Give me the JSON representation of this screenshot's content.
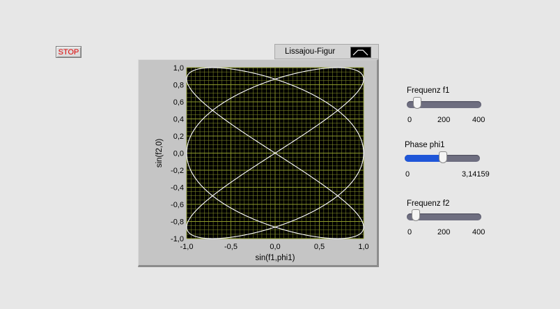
{
  "stop_button": {
    "label": "STOP"
  },
  "legend": {
    "label": "Lissajou-Figur"
  },
  "chart_data": {
    "type": "line",
    "xlabel": "sin(f1,phi1)",
    "ylabel": "sin(f2,0)",
    "xlim": [
      -1.0,
      1.0
    ],
    "ylim": [
      -1.0,
      1.0
    ],
    "x_ticks": [
      "-1,0",
      "-0,5",
      "0,0",
      "0,5",
      "1,0"
    ],
    "y_ticks": [
      "1,0",
      "0,8",
      "0,6",
      "0,4",
      "0,2",
      "0,0",
      "-0,2",
      "-0,4",
      "-0,6",
      "-0,8",
      "-1,0"
    ],
    "grid": true,
    "series": [
      {
        "x_frequency": 30,
        "x_phase": 1.5708,
        "y_frequency": 20,
        "y_phase": 0
      }
    ],
    "colors": {
      "background": "#000000",
      "grid": "#8e9a2c",
      "line": "#ffffff"
    }
  },
  "controls": {
    "frequenz_f1": {
      "label": "Frequenz f1",
      "value": 30,
      "min": 0,
      "max": 400,
      "ticks": [
        "0",
        "200",
        "400"
      ]
    },
    "phase_phi1": {
      "label": "Phase phi1",
      "value": 1.5708,
      "min": 0,
      "max": 3.14159,
      "ticks": [
        "0",
        "3,14159"
      ]
    },
    "frequenz_f2": {
      "label": "Frequenz f2",
      "value": 20,
      "min": 0,
      "max": 400,
      "ticks": [
        "0",
        "200",
        "400"
      ]
    }
  }
}
